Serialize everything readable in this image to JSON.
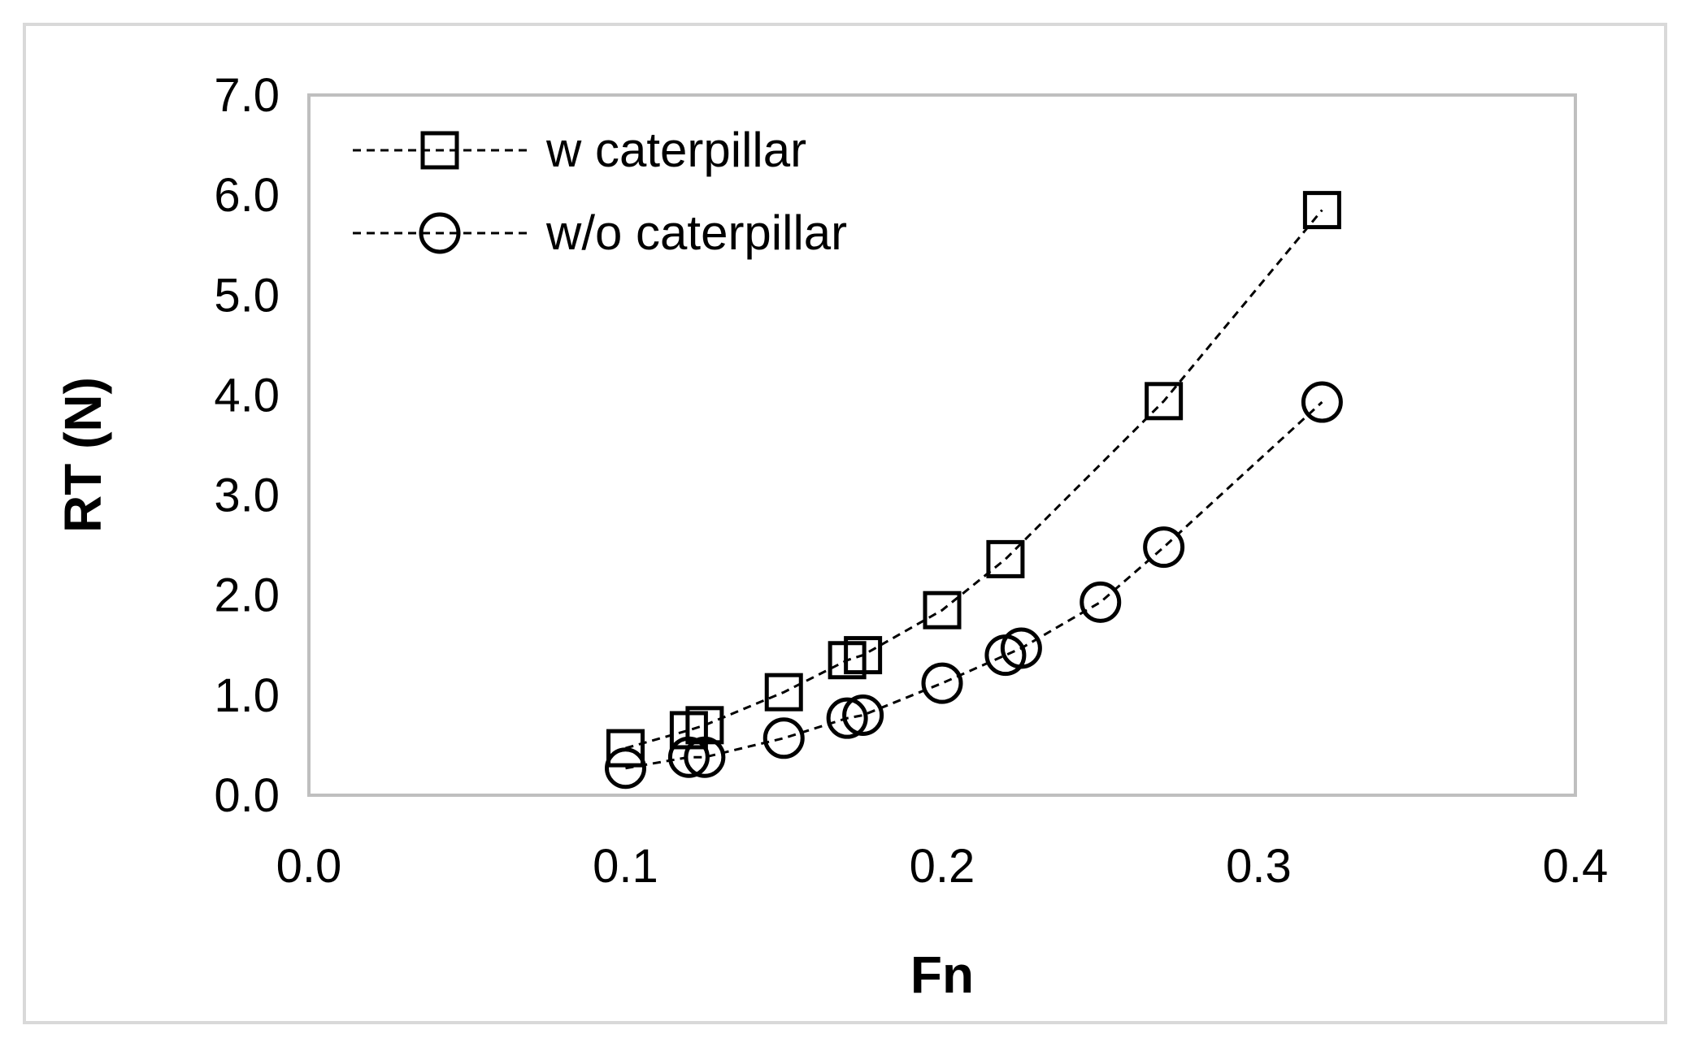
{
  "chart_data": {
    "type": "scatter",
    "title": "",
    "xlabel": "Fn",
    "ylabel": "RT (N)",
    "xlim": [
      0.0,
      0.4
    ],
    "ylim": [
      0.0,
      7.0
    ],
    "x_ticks": [
      "0.0",
      "0.1",
      "0.2",
      "0.3",
      "0.4"
    ],
    "y_ticks": [
      "0.0",
      "1.0",
      "2.0",
      "3.0",
      "4.0",
      "5.0",
      "6.0",
      "7.0"
    ],
    "grid": false,
    "legend_position": "top-left",
    "series": [
      {
        "name": "w caterpillar",
        "marker": "square",
        "line_style": "dashed",
        "color": "#000000",
        "x": [
          0.1,
          0.12,
          0.125,
          0.15,
          0.17,
          0.175,
          0.2,
          0.22,
          0.27,
          0.32
        ],
        "y": [
          0.47,
          0.65,
          0.7,
          1.03,
          1.35,
          1.4,
          1.85,
          2.36,
          3.94,
          5.85
        ]
      },
      {
        "name": "w/o caterpillar",
        "marker": "circle",
        "line_style": "dashed",
        "color": "#000000",
        "x": [
          0.1,
          0.12,
          0.125,
          0.15,
          0.17,
          0.175,
          0.2,
          0.22,
          0.225,
          0.25,
          0.27,
          0.32
        ],
        "y": [
          0.27,
          0.38,
          0.38,
          0.57,
          0.77,
          0.8,
          1.12,
          1.4,
          1.47,
          1.93,
          2.48,
          3.93
        ]
      }
    ]
  }
}
